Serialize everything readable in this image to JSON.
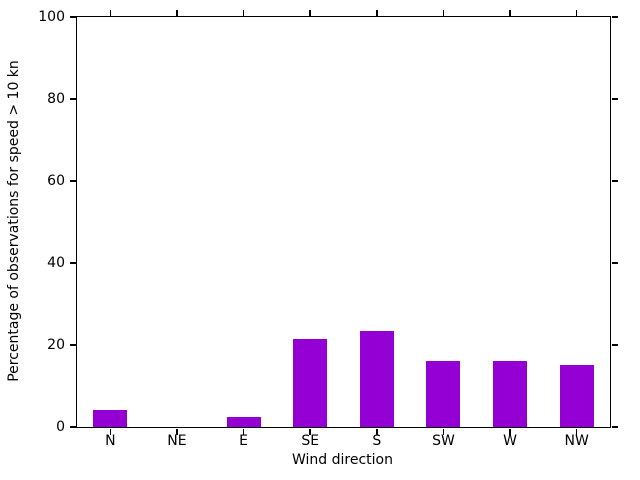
{
  "chart_data": {
    "type": "bar",
    "title": "",
    "xlabel": "Wind direction",
    "ylabel": "Percentage of observations for speed > 10 kn",
    "categories": [
      "N",
      "NE",
      "E",
      "SE",
      "S",
      "SW",
      "W",
      "NW"
    ],
    "values": [
      4.2,
      0,
      2.4,
      21.5,
      23.4,
      16.1,
      16.1,
      15.2
    ],
    "ylim": [
      0,
      100
    ],
    "yticks": [
      0,
      20,
      40,
      60,
      80,
      100
    ],
    "grid": false,
    "legend_position": "none",
    "bar_color": "#9400d3",
    "axis_color": "#000000",
    "background_color": "#ffffff"
  }
}
